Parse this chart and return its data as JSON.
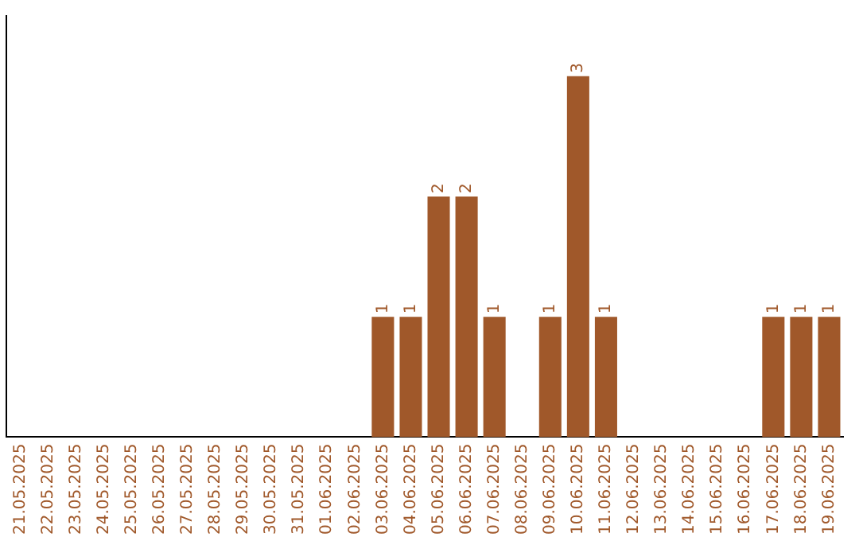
{
  "chart_data": {
    "type": "bar",
    "categories": [
      "21.05.2025",
      "22.05.2025",
      "23.05.2025",
      "24.05.2025",
      "25.05.2025",
      "26.05.2025",
      "27.05.2025",
      "28.05.2025",
      "29.05.2025",
      "30.05.2025",
      "31.05.2025",
      "01.06.2025",
      "02.06.2025",
      "03.06.2025",
      "04.06.2025",
      "05.06.2025",
      "06.06.2025",
      "07.06.2025",
      "08.06.2025",
      "09.06.2025",
      "10.06.2025",
      "11.06.2025",
      "12.06.2025",
      "13.06.2025",
      "14.06.2025",
      "15.06.2025",
      "16.06.2025",
      "17.06.2025",
      "18.06.2025",
      "19.06.2025"
    ],
    "values": [
      null,
      null,
      null,
      null,
      null,
      null,
      null,
      null,
      null,
      null,
      null,
      null,
      null,
      1,
      1,
      2,
      2,
      1,
      null,
      1,
      3,
      1,
      null,
      null,
      null,
      null,
      null,
      1,
      1,
      1
    ],
    "value_labels": [
      null,
      null,
      null,
      null,
      null,
      null,
      null,
      null,
      null,
      null,
      null,
      null,
      null,
      "1",
      "1",
      "2",
      "2",
      "1",
      null,
      "1",
      "3",
      "1",
      null,
      null,
      null,
      null,
      null,
      "1",
      "1",
      "1"
    ],
    "color": "#a0582a",
    "tick_labels": "x",
    "grid": false,
    "legend": false
  }
}
